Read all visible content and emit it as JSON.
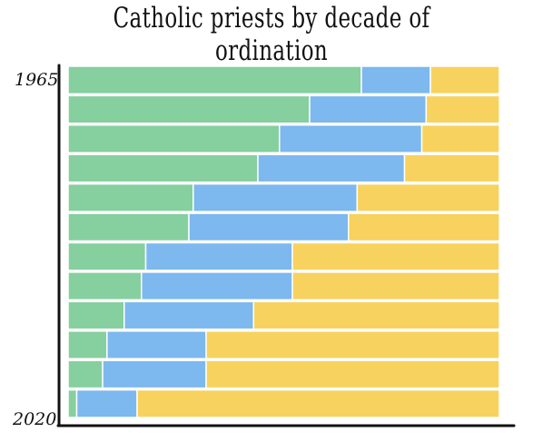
{
  "chart_data": {
    "type": "bar",
    "orientation": "horizontal",
    "stacked": true,
    "normalized_100": true,
    "title": "Catholic priests by decade of ordination",
    "y_tick_labels": [
      "1965",
      "2020"
    ],
    "rows": 12,
    "series": [
      {
        "values": [
          68,
          56,
          49,
          44,
          29,
          28,
          18,
          17,
          13,
          9,
          8,
          2
        ]
      },
      {
        "values": [
          16,
          27,
          33,
          34,
          38,
          37,
          34,
          35,
          30,
          23,
          24,
          14
        ]
      },
      {
        "values": [
          16,
          17,
          18,
          22,
          33,
          35,
          48,
          48,
          57,
          68,
          68,
          84
        ]
      }
    ],
    "colors": [
      "#86CF9E",
      "#7DB8EE",
      "#F7D25E"
    ],
    "grid": false,
    "legend": "none"
  }
}
